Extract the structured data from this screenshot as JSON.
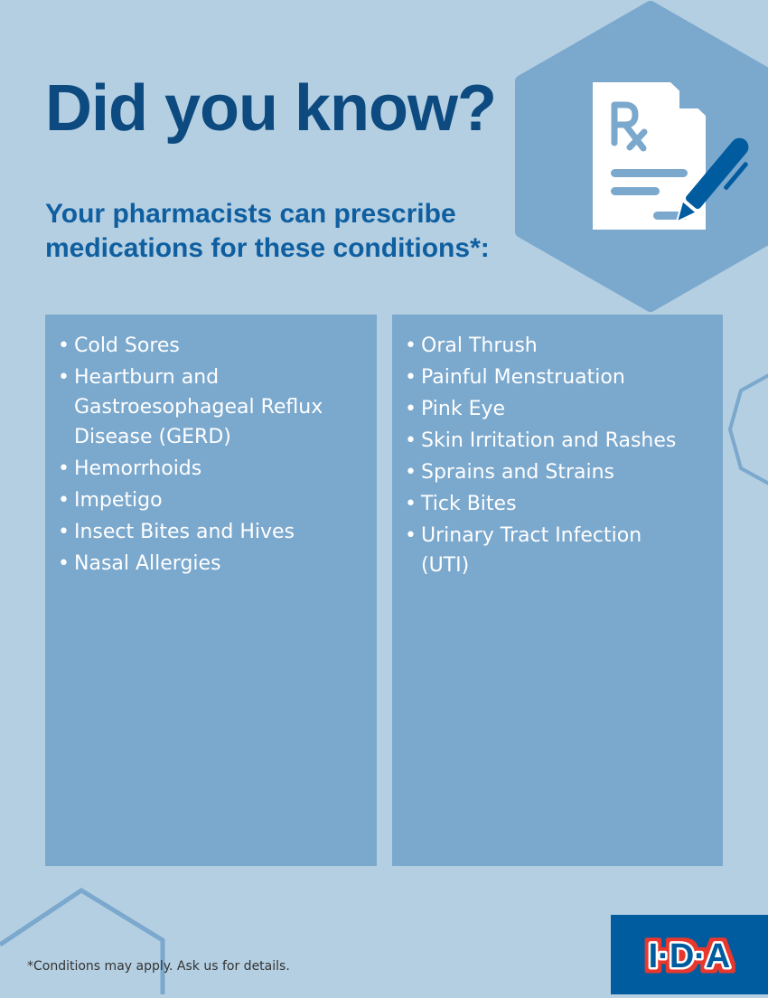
{
  "title": "Did you know?",
  "subtitle": "Your pharmacists can prescribe medications for these conditions*:",
  "left_conditions": [
    "Cold Sores",
    "Heartburn and Gastroesophageal Reflux Disease (GERD)",
    "Hemorrhoids",
    "Impetigo",
    "Insect Bites and Hives",
    "Nasal Allergies"
  ],
  "right_conditions": [
    "Oral Thrush",
    "Painful Menstruation",
    "Pink Eye",
    "Skin Irritation and Rashes",
    "Sprains and Strains",
    "Tick Bites",
    "Urinary Tract Infection (UTI)"
  ],
  "footnote": "*Conditions may apply. Ask us for details.",
  "logo_text": "I·D·A",
  "icon": "prescription-pen-icon",
  "colors": {
    "background": "#b4cfe2",
    "panel": "#7ba8cd",
    "title": "#0c4a80",
    "brand": "#005c9f",
    "logo_red": "#e8392e"
  }
}
